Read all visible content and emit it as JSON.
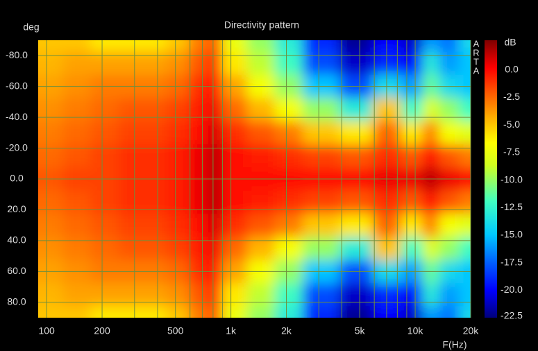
{
  "chart_data": {
    "type": "heatmap",
    "title": "Directivity pattern",
    "y_label": "deg",
    "x_label": "F(Hz)",
    "colorbar_label": "dB",
    "watermark": "ARTA",
    "log_x": true,
    "grid": true,
    "grid_color": "#6f8f3c",
    "xlim": [
      90,
      20000
    ],
    "ylim": [
      -90,
      90
    ],
    "zlim": [
      -22.5,
      2.7
    ],
    "xticks": [
      100,
      200,
      500,
      {
        "value": 1000,
        "label": "1k"
      },
      {
        "value": 2000,
        "label": "2k"
      },
      {
        "value": 5000,
        "label": "5k"
      },
      {
        "value": 10000,
        "label": "10k"
      },
      {
        "value": 20000,
        "label": "20k"
      }
    ],
    "xgrid": [
      100,
      200,
      300,
      400,
      500,
      600,
      700,
      800,
      900,
      1000,
      2000,
      3000,
      4000,
      5000,
      6000,
      7000,
      8000,
      9000,
      10000,
      20000
    ],
    "yticks": [
      {
        "value": -80,
        "label": "-80.0"
      },
      {
        "value": -60,
        "label": "-60.0"
      },
      {
        "value": -40,
        "label": "-40.0"
      },
      {
        "value": -20,
        "label": "-20.0"
      },
      {
        "value": 0,
        "label": "0.0"
      },
      {
        "value": 20,
        "label": "20.0"
      },
      {
        "value": 40,
        "label": "40.0"
      },
      {
        "value": 60,
        "label": "60.0"
      },
      {
        "value": 80,
        "label": "80.0"
      }
    ],
    "zticks": [
      {
        "value": 0,
        "label": "0.0"
      },
      -2.5,
      {
        "value": -5,
        "label": "-5.0"
      },
      -7.5,
      {
        "value": -10,
        "label": "-10.0"
      },
      -12.5,
      {
        "value": -15,
        "label": "-15.0"
      },
      -17.5,
      {
        "value": -20,
        "label": "-20.0"
      },
      -22.5
    ],
    "x": [
      100,
      150,
      200,
      300,
      400,
      500,
      700,
      800,
      1000,
      1500,
      2000,
      3000,
      5000,
      7000,
      10000,
      12000,
      15000,
      20000
    ],
    "y": [
      -90,
      -75,
      -60,
      -45,
      -30,
      -15,
      0,
      15,
      30,
      45,
      60,
      75,
      90
    ],
    "z": [
      [
        -5,
        -5,
        -6,
        -6,
        -6,
        -5,
        -3,
        -2,
        -7.5,
        -10,
        -13,
        -19,
        -22,
        -20,
        -21,
        -16,
        -17,
        -14
      ],
      [
        -4.5,
        -4,
        -4,
        -4,
        -4,
        -3.5,
        -2,
        -1,
        -6,
        -9,
        -12,
        -18,
        -21,
        -19,
        -20,
        -13,
        -16,
        -15
      ],
      [
        -4,
        -3.5,
        -3,
        -3,
        -3,
        -2.5,
        -1,
        0,
        -4,
        -7,
        -10,
        -15,
        -18,
        -14,
        -16,
        -11,
        -14,
        -15
      ],
      [
        -3.5,
        -3,
        -2.5,
        -2,
        -2,
        -1.5,
        -0.5,
        0.5,
        -2.5,
        -4.5,
        -7,
        -10,
        -13,
        -5,
        -12,
        -8,
        -10,
        -12
      ],
      [
        -3,
        -2.5,
        -2,
        -1.5,
        -1.5,
        -1,
        0,
        1,
        -1,
        -2,
        -3,
        -5,
        -6,
        -2.5,
        -6,
        -3,
        -7,
        -8
      ],
      [
        -2.5,
        -2,
        -1.5,
        -1,
        -1,
        -0.5,
        0.5,
        1.5,
        0,
        -0.5,
        -1,
        -1.5,
        -2,
        -1,
        -2,
        0,
        -2,
        -3
      ],
      [
        -2,
        -1.5,
        -1.5,
        -1,
        -1,
        -0.5,
        0.5,
        1.5,
        0,
        0,
        0,
        0,
        0,
        0.5,
        0.5,
        1.5,
        0.5,
        0
      ],
      [
        -2.5,
        -2,
        -1.5,
        -1,
        -1,
        -0.5,
        0.5,
        1.5,
        0,
        -0.5,
        -1,
        -1.5,
        -2,
        -1,
        -2,
        0,
        -2,
        -3
      ],
      [
        -3,
        -2.5,
        -2,
        -1.5,
        -1.5,
        -1,
        0,
        1,
        -1,
        -2,
        -3,
        -5,
        -6,
        -2.5,
        -6,
        -3,
        -7,
        -8
      ],
      [
        -3.5,
        -3,
        -2.5,
        -2,
        -2,
        -1.5,
        -0.5,
        0.5,
        -2.5,
        -4.5,
        -7,
        -10,
        -13,
        -5,
        -12,
        -8,
        -10,
        -12
      ],
      [
        -4,
        -3.5,
        -3,
        -3,
        -3,
        -2.5,
        -1,
        0,
        -4,
        -7,
        -10,
        -15,
        -18,
        -14,
        -16,
        -11,
        -14,
        -15
      ],
      [
        -4.5,
        -4,
        -4,
        -4,
        -4,
        -3.5,
        -2,
        -1,
        -6,
        -9,
        -12,
        -18,
        -21,
        -19,
        -20,
        -13,
        -16,
        -15
      ],
      [
        -5,
        -5,
        -6,
        -6,
        -6,
        -5,
        -3,
        -2,
        -7.5,
        -10,
        -13,
        -19,
        -22,
        -20,
        -21,
        -16,
        -17,
        -14
      ]
    ]
  }
}
